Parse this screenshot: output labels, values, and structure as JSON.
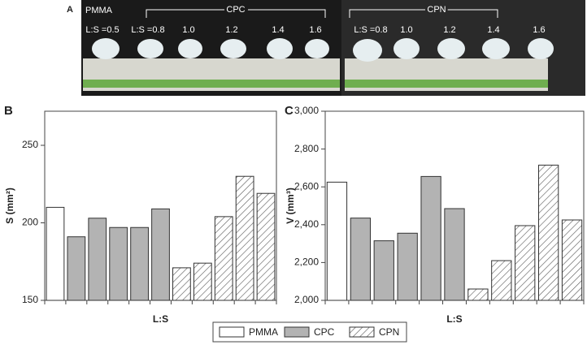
{
  "panel_a": {
    "label": "A",
    "groups": [
      "PMMA",
      "CPC",
      "CPN"
    ],
    "left_ratios": [
      "L:S =0.5",
      "L:S =0.8",
      "1.0",
      "1.2",
      "1.4",
      "1.6"
    ],
    "right_ratios": [
      "L:S =0.8",
      "1.0",
      "1.2",
      "1.4",
      "1.6"
    ]
  },
  "legend": [
    {
      "name": "PMMA",
      "color": "#ffffff",
      "hatch": false
    },
    {
      "name": "CPC",
      "color": "#b3b3b3",
      "hatch": false
    },
    {
      "name": "CPN",
      "color": "#ffffff",
      "hatch": true
    }
  ],
  "chart_data": [
    {
      "type": "bar",
      "panel": "B",
      "xlabel": "L:S",
      "ylabel": "S (mm²)",
      "categories": [
        null,
        null,
        null,
        null,
        null,
        null,
        null,
        null,
        null,
        null,
        null
      ],
      "series": [
        {
          "values": [
            210,
            null,
            null,
            null,
            null,
            null,
            null,
            null,
            null,
            null,
            null
          ]
        },
        {
          "values": [
            null,
            191,
            203,
            197,
            197,
            209,
            null,
            null,
            null,
            null,
            null
          ]
        },
        {
          "values": [
            null,
            null,
            null,
            null,
            null,
            null,
            171,
            174,
            204,
            230,
            219
          ]
        }
      ],
      "ylim": [
        150,
        272
      ],
      "yticks": [
        150,
        200,
        250
      ]
    },
    {
      "type": "bar",
      "panel": "C",
      "xlabel": "L:S",
      "ylabel": "V (mm³)",
      "categories": [
        null,
        null,
        null,
        null,
        null,
        null,
        null,
        null,
        null,
        null,
        null
      ],
      "series": [
        {
          "values": [
            2625,
            null,
            null,
            null,
            null,
            null,
            null,
            null,
            null,
            null,
            null
          ]
        },
        {
          "values": [
            null,
            2435,
            2315,
            2355,
            2655,
            2485,
            null,
            null,
            null,
            null,
            null
          ]
        },
        {
          "values": [
            null,
            null,
            null,
            null,
            null,
            null,
            2060,
            2210,
            2395,
            2715,
            2425
          ]
        }
      ],
      "ylim": [
        2000,
        3000
      ],
      "yticks": [
        {
          "value": 2000,
          "label": "2,000"
        },
        {
          "value": 2200,
          "label": "2,200"
        },
        {
          "value": 2400,
          "label": "2,400"
        },
        {
          "value": 2600,
          "label": "2,600"
        },
        {
          "value": 2800,
          "label": "2,800"
        },
        {
          "value": 3000,
          "label": "3,000"
        }
      ]
    }
  ]
}
